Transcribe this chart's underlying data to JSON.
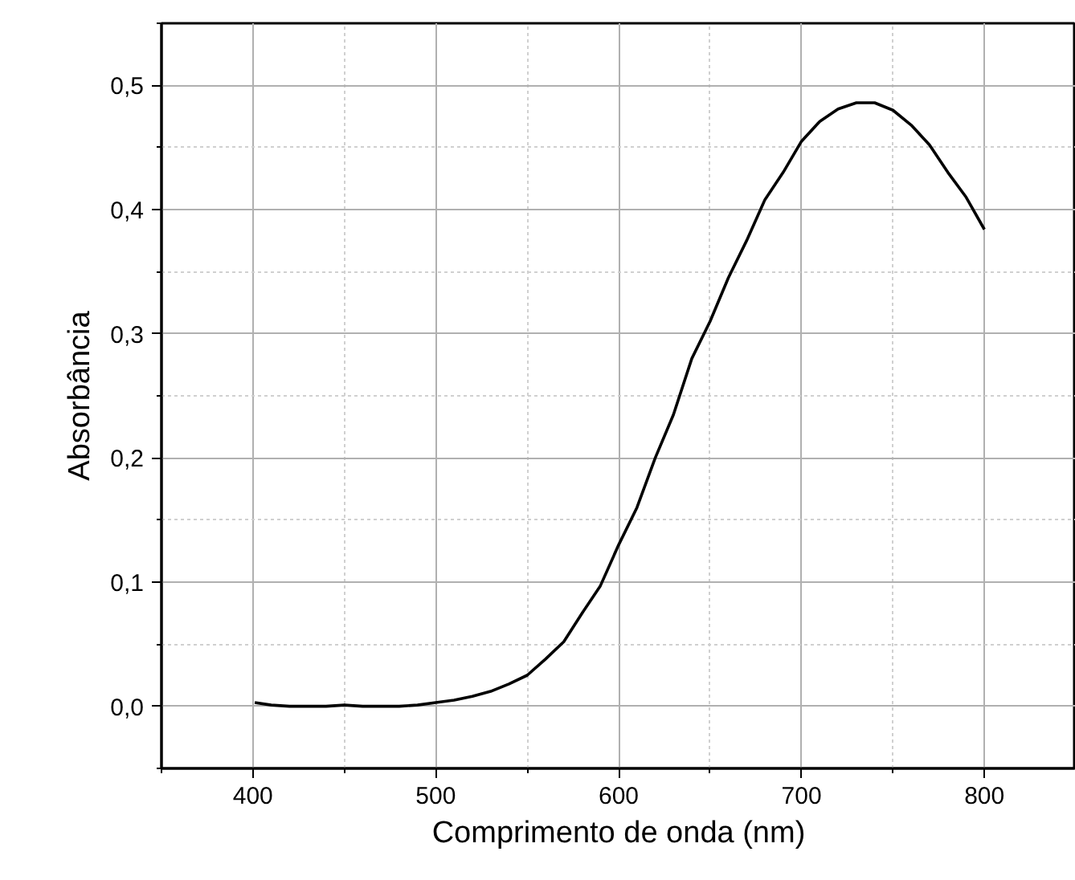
{
  "chart_data": {
    "type": "line",
    "xlabel": "Comprimento de onda (nm)",
    "ylabel": "Absorbância",
    "x": [
      401,
      410,
      420,
      430,
      440,
      450,
      460,
      470,
      480,
      490,
      500,
      510,
      520,
      530,
      540,
      550,
      560,
      570,
      580,
      590,
      600,
      610,
      620,
      630,
      640,
      650,
      660,
      670,
      680,
      690,
      700,
      710,
      720,
      730,
      740,
      750,
      760,
      770,
      780,
      790,
      800
    ],
    "series": [
      {
        "color": "#000000",
        "values": [
          0.003,
          0.001,
          0.0,
          0.0,
          0.0,
          0.001,
          0.0,
          0.0,
          0.0,
          0.001,
          0.003,
          0.005,
          0.008,
          0.012,
          0.018,
          0.025,
          0.038,
          0.052,
          0.075,
          0.097,
          0.13,
          0.16,
          0.2,
          0.235,
          0.28,
          0.31,
          0.345,
          0.375,
          0.408,
          0.43,
          0.455,
          0.471,
          0.481,
          0.486,
          0.486,
          0.48,
          0.468,
          0.452,
          0.43,
          0.41,
          0.384
        ]
      }
    ],
    "xlim": [
      350,
      850
    ],
    "ylim": [
      -0.05,
      0.55
    ],
    "xticks": [
      {
        "value": 350,
        "label": null
      },
      400,
      {
        "value": 450,
        "label": null
      },
      500,
      {
        "value": 550,
        "label": null
      },
      600,
      {
        "value": 650,
        "label": null
      },
      700,
      {
        "value": 750,
        "label": null
      },
      800,
      {
        "value": 850,
        "label": null
      }
    ],
    "yticks": [
      {
        "value": -0.05,
        "label": null
      },
      {
        "value": 0,
        "label": "0,0"
      },
      {
        "value": 0.05,
        "label": null
      },
      {
        "value": 0.1,
        "label": "0,1"
      },
      {
        "value": 0.15,
        "label": null
      },
      {
        "value": 0.2,
        "label": "0,2"
      },
      {
        "value": 0.25,
        "label": null
      },
      {
        "value": 0.3,
        "label": "0,3"
      },
      {
        "value": 0.35,
        "label": null
      },
      {
        "value": 0.4,
        "label": "0,4"
      },
      {
        "value": 0.45,
        "label": null
      },
      {
        "value": 0.5,
        "label": "0,5"
      },
      {
        "value": 0.55,
        "label": null
      }
    ],
    "grid": true,
    "marker": "none",
    "line_style": "solid"
  }
}
